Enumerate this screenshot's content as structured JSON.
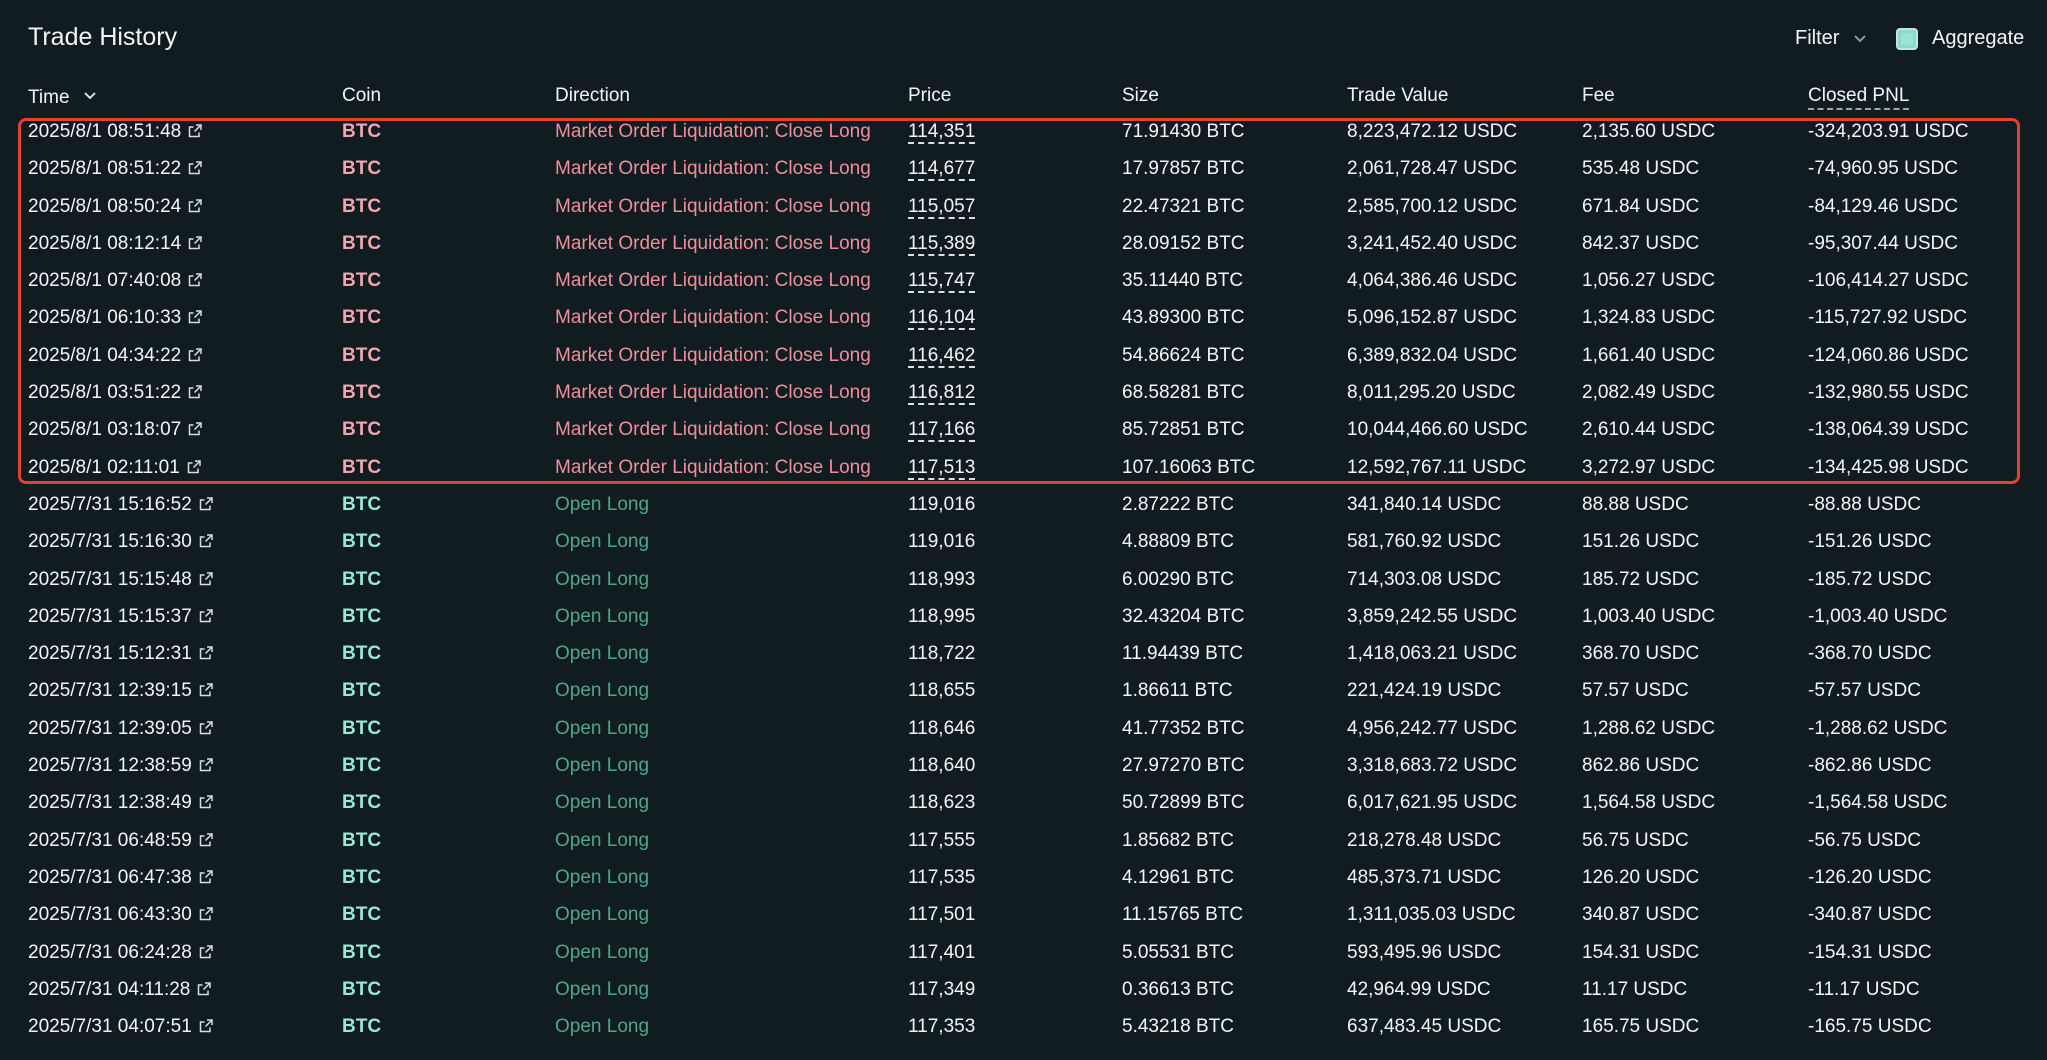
{
  "header": {
    "title": "Trade History",
    "filter_label": "Filter",
    "aggregate_label": "Aggregate"
  },
  "columns": {
    "time": "Time",
    "coin": "Coin",
    "direction": "Direction",
    "price": "Price",
    "size": "Size",
    "trade_value": "Trade Value",
    "fee": "Fee",
    "closed_pnl": "Closed PNL"
  },
  "colors": {
    "background": "#111c21",
    "liquidation_text": "#ef8e9c",
    "open_long_text": "#4fa786",
    "highlight_border": "#e2432f"
  },
  "rows": [
    {
      "time": "2025/8/1 08:51:48",
      "coin": "BTC",
      "direction": "Market Order Liquidation: Close Long",
      "price": "114,351",
      "size": "71.91430 BTC",
      "trade_value": "8,223,472.12 USDC",
      "fee": "2,135.60 USDC",
      "closed_pnl": "-324,203.91 USDC",
      "type": "liquidation"
    },
    {
      "time": "2025/8/1 08:51:22",
      "coin": "BTC",
      "direction": "Market Order Liquidation: Close Long",
      "price": "114,677",
      "size": "17.97857 BTC",
      "trade_value": "2,061,728.47 USDC",
      "fee": "535.48 USDC",
      "closed_pnl": "-74,960.95 USDC",
      "type": "liquidation"
    },
    {
      "time": "2025/8/1 08:50:24",
      "coin": "BTC",
      "direction": "Market Order Liquidation: Close Long",
      "price": "115,057",
      "size": "22.47321 BTC",
      "trade_value": "2,585,700.12 USDC",
      "fee": "671.84 USDC",
      "closed_pnl": "-84,129.46 USDC",
      "type": "liquidation"
    },
    {
      "time": "2025/8/1 08:12:14",
      "coin": "BTC",
      "direction": "Market Order Liquidation: Close Long",
      "price": "115,389",
      "size": "28.09152 BTC",
      "trade_value": "3,241,452.40 USDC",
      "fee": "842.37 USDC",
      "closed_pnl": "-95,307.44 USDC",
      "type": "liquidation"
    },
    {
      "time": "2025/8/1 07:40:08",
      "coin": "BTC",
      "direction": "Market Order Liquidation: Close Long",
      "price": "115,747",
      "size": "35.11440 BTC",
      "trade_value": "4,064,386.46 USDC",
      "fee": "1,056.27 USDC",
      "closed_pnl": "-106,414.27 USDC",
      "type": "liquidation"
    },
    {
      "time": "2025/8/1 06:10:33",
      "coin": "BTC",
      "direction": "Market Order Liquidation: Close Long",
      "price": "116,104",
      "size": "43.89300 BTC",
      "trade_value": "5,096,152.87 USDC",
      "fee": "1,324.83 USDC",
      "closed_pnl": "-115,727.92 USDC",
      "type": "liquidation"
    },
    {
      "time": "2025/8/1 04:34:22",
      "coin": "BTC",
      "direction": "Market Order Liquidation: Close Long",
      "price": "116,462",
      "size": "54.86624 BTC",
      "trade_value": "6,389,832.04 USDC",
      "fee": "1,661.40 USDC",
      "closed_pnl": "-124,060.86 USDC",
      "type": "liquidation"
    },
    {
      "time": "2025/8/1 03:51:22",
      "coin": "BTC",
      "direction": "Market Order Liquidation: Close Long",
      "price": "116,812",
      "size": "68.58281 BTC",
      "trade_value": "8,011,295.20 USDC",
      "fee": "2,082.49 USDC",
      "closed_pnl": "-132,980.55 USDC",
      "type": "liquidation"
    },
    {
      "time": "2025/8/1 03:18:07",
      "coin": "BTC",
      "direction": "Market Order Liquidation: Close Long",
      "price": "117,166",
      "size": "85.72851 BTC",
      "trade_value": "10,044,466.60 USDC",
      "fee": "2,610.44 USDC",
      "closed_pnl": "-138,064.39 USDC",
      "type": "liquidation"
    },
    {
      "time": "2025/8/1 02:11:01",
      "coin": "BTC",
      "direction": "Market Order Liquidation: Close Long",
      "price": "117,513",
      "size": "107.16063 BTC",
      "trade_value": "12,592,767.11 USDC",
      "fee": "3,272.97 USDC",
      "closed_pnl": "-134,425.98 USDC",
      "type": "liquidation"
    },
    {
      "time": "2025/7/31 15:16:52",
      "coin": "BTC",
      "direction": "Open Long",
      "price": "119,016",
      "size": "2.87222 BTC",
      "trade_value": "341,840.14 USDC",
      "fee": "88.88 USDC",
      "closed_pnl": "-88.88 USDC",
      "type": "open"
    },
    {
      "time": "2025/7/31 15:16:30",
      "coin": "BTC",
      "direction": "Open Long",
      "price": "119,016",
      "size": "4.88809 BTC",
      "trade_value": "581,760.92 USDC",
      "fee": "151.26 USDC",
      "closed_pnl": "-151.26 USDC",
      "type": "open"
    },
    {
      "time": "2025/7/31 15:15:48",
      "coin": "BTC",
      "direction": "Open Long",
      "price": "118,993",
      "size": "6.00290 BTC",
      "trade_value": "714,303.08 USDC",
      "fee": "185.72 USDC",
      "closed_pnl": "-185.72 USDC",
      "type": "open"
    },
    {
      "time": "2025/7/31 15:15:37",
      "coin": "BTC",
      "direction": "Open Long",
      "price": "118,995",
      "size": "32.43204 BTC",
      "trade_value": "3,859,242.55 USDC",
      "fee": "1,003.40 USDC",
      "closed_pnl": "-1,003.40 USDC",
      "type": "open"
    },
    {
      "time": "2025/7/31 15:12:31",
      "coin": "BTC",
      "direction": "Open Long",
      "price": "118,722",
      "size": "11.94439 BTC",
      "trade_value": "1,418,063.21 USDC",
      "fee": "368.70 USDC",
      "closed_pnl": "-368.70 USDC",
      "type": "open"
    },
    {
      "time": "2025/7/31 12:39:15",
      "coin": "BTC",
      "direction": "Open Long",
      "price": "118,655",
      "size": "1.86611 BTC",
      "trade_value": "221,424.19 USDC",
      "fee": "57.57 USDC",
      "closed_pnl": "-57.57 USDC",
      "type": "open"
    },
    {
      "time": "2025/7/31 12:39:05",
      "coin": "BTC",
      "direction": "Open Long",
      "price": "118,646",
      "size": "41.77352 BTC",
      "trade_value": "4,956,242.77 USDC",
      "fee": "1,288.62 USDC",
      "closed_pnl": "-1,288.62 USDC",
      "type": "open"
    },
    {
      "time": "2025/7/31 12:38:59",
      "coin": "BTC",
      "direction": "Open Long",
      "price": "118,640",
      "size": "27.97270 BTC",
      "trade_value": "3,318,683.72 USDC",
      "fee": "862.86 USDC",
      "closed_pnl": "-862.86 USDC",
      "type": "open"
    },
    {
      "time": "2025/7/31 12:38:49",
      "coin": "BTC",
      "direction": "Open Long",
      "price": "118,623",
      "size": "50.72899 BTC",
      "trade_value": "6,017,621.95 USDC",
      "fee": "1,564.58 USDC",
      "closed_pnl": "-1,564.58 USDC",
      "type": "open"
    },
    {
      "time": "2025/7/31 06:48:59",
      "coin": "BTC",
      "direction": "Open Long",
      "price": "117,555",
      "size": "1.85682 BTC",
      "trade_value": "218,278.48 USDC",
      "fee": "56.75 USDC",
      "closed_pnl": "-56.75 USDC",
      "type": "open"
    },
    {
      "time": "2025/7/31 06:47:38",
      "coin": "BTC",
      "direction": "Open Long",
      "price": "117,535",
      "size": "4.12961 BTC",
      "trade_value": "485,373.71 USDC",
      "fee": "126.20 USDC",
      "closed_pnl": "-126.20 USDC",
      "type": "open"
    },
    {
      "time": "2025/7/31 06:43:30",
      "coin": "BTC",
      "direction": "Open Long",
      "price": "117,501",
      "size": "11.15765 BTC",
      "trade_value": "1,311,035.03 USDC",
      "fee": "340.87 USDC",
      "closed_pnl": "-340.87 USDC",
      "type": "open"
    },
    {
      "time": "2025/7/31 06:24:28",
      "coin": "BTC",
      "direction": "Open Long",
      "price": "117,401",
      "size": "5.05531 BTC",
      "trade_value": "593,495.96 USDC",
      "fee": "154.31 USDC",
      "closed_pnl": "-154.31 USDC",
      "type": "open"
    },
    {
      "time": "2025/7/31 04:11:28",
      "coin": "BTC",
      "direction": "Open Long",
      "price": "117,349",
      "size": "0.36613 BTC",
      "trade_value": "42,964.99 USDC",
      "fee": "11.17 USDC",
      "closed_pnl": "-11.17 USDC",
      "type": "open"
    },
    {
      "time": "2025/7/31 04:07:51",
      "coin": "BTC",
      "direction": "Open Long",
      "price": "117,353",
      "size": "5.43218 BTC",
      "trade_value": "637,483.45 USDC",
      "fee": "165.75 USDC",
      "closed_pnl": "-165.75 USDC",
      "type": "open"
    }
  ]
}
